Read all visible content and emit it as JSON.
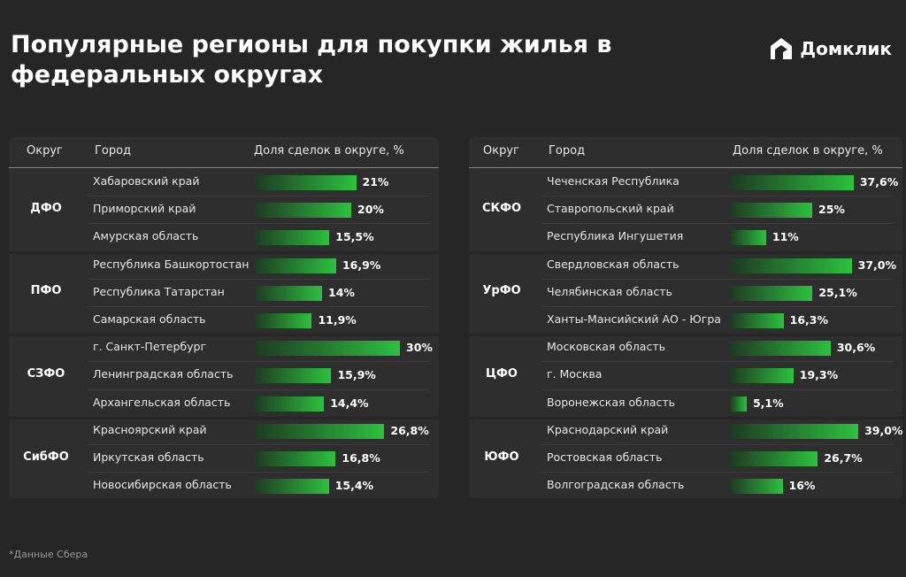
{
  "header": {
    "title": "Популярные регионы для покупки жилья в федеральных округах",
    "logo": "Домклик"
  },
  "footnote": "*Данные Сбера",
  "tables": [
    {
      "columns": [
        "Округ",
        "Город",
        "Доля сделок в округе, %"
      ],
      "groups": [
        {
          "district": "ДФО",
          "rows": [
            {
              "city": "Хабаровский край",
              "value": 21,
              "value_label": "21%"
            },
            {
              "city": "Приморский край",
              "value": 20,
              "value_label": "20%"
            },
            {
              "city": "Амурская область",
              "value": 15.5,
              "value_label": "15,5%"
            }
          ]
        },
        {
          "district": "ПФО",
          "rows": [
            {
              "city": "Республика Башкортостан",
              "value": 16.9,
              "value_label": "16,9%"
            },
            {
              "city": "Республика Татарстан",
              "value": 14,
              "value_label": "14%"
            },
            {
              "city": "Самарская область",
              "value": 11.9,
              "value_label": "11,9%"
            }
          ]
        },
        {
          "district": "СЗФО",
          "rows": [
            {
              "city": "г. Санкт-Петербург",
              "value": 30,
              "value_label": "30%"
            },
            {
              "city": "Ленинградская область",
              "value": 15.9,
              "value_label": "15,9%"
            },
            {
              "city": "Архангельская область",
              "value": 14.4,
              "value_label": "14,4%"
            }
          ]
        },
        {
          "district": "СибФО",
          "rows": [
            {
              "city": "Красноярский край",
              "value": 26.8,
              "value_label": "26,8%"
            },
            {
              "city": "Иркутская область",
              "value": 16.8,
              "value_label": "16,8%"
            },
            {
              "city": "Новосибирская область",
              "value": 15.4,
              "value_label": "15,4%"
            }
          ]
        }
      ]
    },
    {
      "columns": [
        "Округ",
        "Город",
        "Доля сделок в округе, %"
      ],
      "groups": [
        {
          "district": "СКФО",
          "rows": [
            {
              "city": "Чеченская Республика",
              "value": 37.6,
              "value_label": "37,6%"
            },
            {
              "city": "Ставропольский край",
              "value": 25,
              "value_label": "25%"
            },
            {
              "city": "Республика Ингушетия",
              "value": 11,
              "value_label": "11%"
            }
          ]
        },
        {
          "district": "УрФО",
          "rows": [
            {
              "city": "Свердловская область",
              "value": 37.0,
              "value_label": "37,0%"
            },
            {
              "city": "Челябинская область",
              "value": 25.1,
              "value_label": "25,1%"
            },
            {
              "city": "Ханты-Мансийский АО - Югра",
              "value": 16.3,
              "value_label": "16,3%"
            }
          ]
        },
        {
          "district": "ЦФО",
          "rows": [
            {
              "city": "Московская область",
              "value": 30.6,
              "value_label": "30,6%"
            },
            {
              "city": "г. Москва",
              "value": 19.3,
              "value_label": "19,3%"
            },
            {
              "city": "Воронежская область",
              "value": 5.1,
              "value_label": "5,1%"
            }
          ]
        },
        {
          "district": "ЮФО",
          "rows": [
            {
              "city": "Краснодарский край",
              "value": 39.0,
              "value_label": "39,0%"
            },
            {
              "city": "Ростовская область",
              "value": 26.7,
              "value_label": "26,7%"
            },
            {
              "city": "Волгоградская область",
              "value": 16,
              "value_label": "16%"
            }
          ]
        }
      ]
    }
  ]
}
